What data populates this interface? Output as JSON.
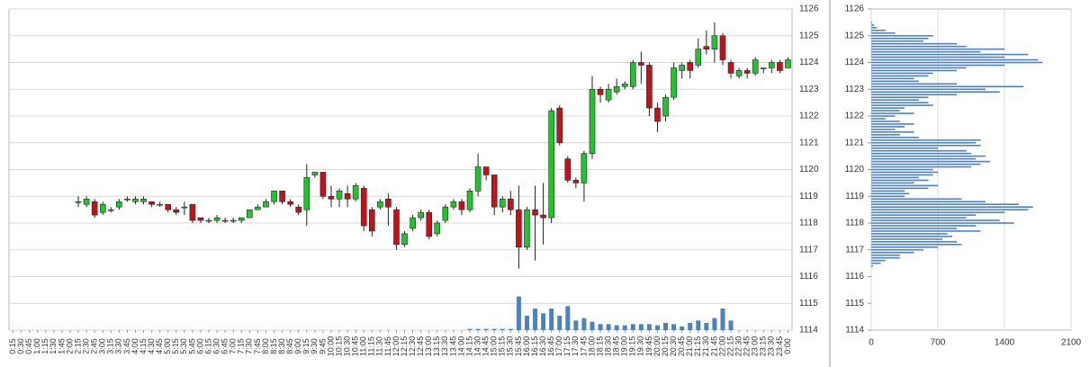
{
  "chart_data": [
    {
      "type": "candlestick",
      "categories": [
        "0:15",
        "0:30",
        "0:45",
        "1:00",
        "1:15",
        "1:30",
        "1:45",
        "2:00",
        "2:15",
        "2:30",
        "2:45",
        "3:00",
        "3:15",
        "3:30",
        "3:45",
        "4:00",
        "4:15",
        "4:30",
        "4:45",
        "5:00",
        "5:15",
        "5:30",
        "5:45",
        "6:00",
        "6:15",
        "6:30",
        "6:45",
        "7:00",
        "7:15",
        "7:30",
        "7:45",
        "8:00",
        "8:15",
        "8:30",
        "8:45",
        "9:00",
        "9:15",
        "9:30",
        "9:45",
        "10:00",
        "10:15",
        "10:30",
        "10:45",
        "11:00",
        "11:15",
        "11:30",
        "11:45",
        "12:00",
        "12:15",
        "12:30",
        "12:45",
        "13:00",
        "13:15",
        "13:30",
        "13:45",
        "14:00",
        "14:15",
        "14:30",
        "14:45",
        "15:00",
        "15:15",
        "15:30",
        "15:45",
        "16:00",
        "16:15",
        "16:30",
        "16:45",
        "17:00",
        "17:15",
        "17:30",
        "17:45",
        "18:00",
        "18:15",
        "18:30",
        "18:45",
        "19:00",
        "19:15",
        "19:30",
        "19:45",
        "20:00",
        "20:15",
        "20:30",
        "20:45",
        "21:00",
        "21:15",
        "21:30",
        "21:45",
        "22:00",
        "22:15",
        "22:30",
        "22:45",
        "23:00",
        "23:15",
        "23:30",
        "23:45",
        "0:00"
      ],
      "open": [
        null,
        null,
        null,
        null,
        null,
        null,
        null,
        null,
        1118.8,
        1118.7,
        1118.8,
        1118.4,
        1118.5,
        1118.6,
        1118.9,
        1118.8,
        1118.8,
        1118.8,
        1118.7,
        1118.7,
        1118.5,
        1118.6,
        1118.7,
        1118.2,
        1118.1,
        1118.1,
        1118.1,
        1118.1,
        1118.1,
        1118.2,
        1118.5,
        1118.6,
        1118.8,
        1119.2,
        1118.8,
        1118.6,
        1118.5,
        1119.8,
        1119.9,
        1119.0,
        1118.9,
        1119.1,
        1118.9,
        1119.3,
        1118.5,
        1118.6,
        1118.9,
        1118.5,
        1117.2,
        1117.8,
        1118.2,
        1118.4,
        1117.6,
        1118.1,
        1118.6,
        1118.8,
        1118.5,
        1119.2,
        1120.1,
        1119.8,
        1118.6,
        1118.9,
        1118.5,
        1117.1,
        1118.5,
        1118.3,
        1118.2,
        1122.3,
        1120.4,
        1119.6,
        1119.5,
        1120.6,
        1123.0,
        1122.6,
        1122.9,
        1123.1,
        1123.1,
        1124.0,
        1123.9,
        1122.3,
        1122.0,
        1122.7,
        1123.7,
        1124.0,
        1123.9,
        1124.6,
        1124.5,
        1125.0,
        1124.0,
        1123.5,
        1123.7,
        1123.6,
        1123.8,
        1123.8,
        1124.0,
        1123.8
      ],
      "high": [
        null,
        null,
        null,
        null,
        null,
        null,
        null,
        null,
        1119.0,
        1119.0,
        1118.9,
        1118.8,
        1118.6,
        1118.9,
        1119.0,
        1119.0,
        1119.0,
        1118.8,
        1118.8,
        1118.7,
        1118.6,
        1118.8,
        1118.7,
        1118.2,
        1118.2,
        1118.3,
        1118.2,
        1118.2,
        1118.2,
        1118.5,
        1118.7,
        1118.9,
        1119.2,
        1119.2,
        1118.9,
        1118.7,
        1120.2,
        1119.9,
        1119.9,
        1119.4,
        1119.3,
        1119.4,
        1119.5,
        1119.4,
        1118.6,
        1118.9,
        1119.1,
        1118.6,
        1117.7,
        1118.3,
        1118.5,
        1118.5,
        1118.1,
        1118.7,
        1118.9,
        1118.9,
        1119.3,
        1120.6,
        1120.1,
        1119.8,
        1119.0,
        1119.2,
        1119.4,
        1118.6,
        1119.4,
        1119.5,
        1122.3,
        1122.4,
        1120.5,
        1119.7,
        1120.7,
        1123.5,
        1123.1,
        1123.2,
        1123.4,
        1123.3,
        1124.1,
        1124.4,
        1124.0,
        1122.5,
        1122.8,
        1124.0,
        1124.0,
        1124.1,
        1124.9,
        1125.2,
        1125.5,
        1125.1,
        1124.1,
        1123.8,
        1123.8,
        1124.2,
        1123.8,
        1124.1,
        1124.1,
        1124.2
      ],
      "low": [
        null,
        null,
        null,
        null,
        null,
        null,
        null,
        null,
        1118.6,
        1118.6,
        1118.2,
        1118.3,
        1118.4,
        1118.5,
        1118.8,
        1118.7,
        1118.7,
        1118.6,
        1118.6,
        1118.4,
        1118.3,
        1118.3,
        1118.0,
        1118.0,
        1118.0,
        1118.0,
        1118.0,
        1118.0,
        1118.0,
        1118.2,
        1118.5,
        1118.6,
        1118.7,
        1118.7,
        1118.6,
        1118.3,
        1117.9,
        1119.7,
        1118.9,
        1118.6,
        1118.6,
        1118.6,
        1118.8,
        1117.7,
        1117.5,
        1118.5,
        1117.9,
        1117.0,
        1117.1,
        1117.7,
        1118.1,
        1117.4,
        1117.5,
        1118.0,
        1118.5,
        1118.3,
        1118.4,
        1119.0,
        1119.6,
        1118.3,
        1118.4,
        1118.3,
        1116.3,
        1117.0,
        1116.6,
        1117.2,
        1118.0,
        1120.9,
        1119.5,
        1119.3,
        1118.8,
        1120.4,
        1122.5,
        1122.5,
        1122.8,
        1123.0,
        1123.0,
        1123.2,
        1122.0,
        1121.4,
        1121.8,
        1122.6,
        1123.4,
        1123.4,
        1123.8,
        1124.3,
        1124.0,
        1123.9,
        1123.4,
        1123.4,
        1123.4,
        1123.5,
        1123.6,
        1123.6,
        1123.6,
        1123.8
      ],
      "close": [
        null,
        null,
        null,
        null,
        null,
        null,
        null,
        null,
        1118.8,
        1118.9,
        1118.3,
        1118.7,
        1118.5,
        1118.8,
        1118.9,
        1118.9,
        1118.9,
        1118.7,
        1118.7,
        1118.5,
        1118.4,
        1118.6,
        1118.1,
        1118.1,
        1118.1,
        1118.2,
        1118.1,
        1118.1,
        1118.2,
        1118.5,
        1118.6,
        1118.8,
        1119.2,
        1118.8,
        1118.7,
        1118.4,
        1119.7,
        1119.9,
        1119.0,
        1118.9,
        1119.2,
        1118.9,
        1119.4,
        1117.9,
        1117.7,
        1118.8,
        1118.6,
        1117.2,
        1117.6,
        1118.2,
        1118.4,
        1117.5,
        1118.0,
        1118.6,
        1118.8,
        1118.5,
        1119.2,
        1120.1,
        1119.8,
        1118.6,
        1118.9,
        1118.5,
        1117.1,
        1118.5,
        1118.3,
        1118.2,
        1122.2,
        1121.0,
        1119.6,
        1119.5,
        1120.6,
        1123.0,
        1122.8,
        1123.0,
        1123.1,
        1123.2,
        1124.0,
        1123.9,
        1122.3,
        1121.8,
        1122.7,
        1123.8,
        1123.9,
        1123.7,
        1124.5,
        1124.5,
        1125.0,
        1124.1,
        1123.6,
        1123.7,
        1123.6,
        1124.1,
        1123.8,
        1124.0,
        1123.7,
        1124.1
      ],
      "volume": [
        null,
        null,
        null,
        null,
        null,
        null,
        null,
        null,
        null,
        null,
        null,
        null,
        null,
        null,
        null,
        null,
        null,
        null,
        null,
        null,
        null,
        null,
        null,
        null,
        null,
        null,
        null,
        null,
        null,
        null,
        null,
        null,
        null,
        null,
        null,
        null,
        null,
        null,
        null,
        null,
        null,
        null,
        null,
        null,
        null,
        null,
        null,
        null,
        null,
        null,
        null,
        null,
        null,
        null,
        null,
        null,
        1,
        1,
        1,
        1,
        1,
        1,
        28,
        12,
        18,
        14,
        18,
        12,
        20,
        8,
        10,
        7,
        5,
        5,
        4,
        4,
        5,
        5,
        5,
        4,
        6,
        5,
        3,
        6,
        8,
        6,
        10,
        18,
        8,
        null,
        null,
        null,
        null,
        null,
        null,
        null
      ],
      "up_color": "#22c32e",
      "down_color": "#c0141c",
      "volume_color": "#4f81bd",
      "ylim": [
        1114,
        1126
      ],
      "yticks": [
        1114,
        1115,
        1116,
        1117,
        1118,
        1119,
        1120,
        1121,
        1122,
        1123,
        1124,
        1125,
        1126
      ],
      "grid": true
    },
    {
      "type": "barh",
      "levels": [
        1125.5,
        1125.4,
        1125.3,
        1125.2,
        1125.1,
        1125.0,
        1124.9,
        1124.8,
        1124.7,
        1124.6,
        1124.5,
        1124.4,
        1124.3,
        1124.2,
        1124.1,
        1124.0,
        1123.9,
        1123.8,
        1123.7,
        1123.6,
        1123.5,
        1123.4,
        1123.3,
        1123.2,
        1123.1,
        1123.0,
        1122.9,
        1122.8,
        1122.7,
        1122.6,
        1122.5,
        1122.4,
        1122.3,
        1122.2,
        1122.1,
        1122.0,
        1121.9,
        1121.8,
        1121.7,
        1121.6,
        1121.5,
        1121.4,
        1121.3,
        1121.2,
        1121.1,
        1121.0,
        1120.9,
        1120.8,
        1120.7,
        1120.6,
        1120.5,
        1120.4,
        1120.3,
        1120.2,
        1120.1,
        1120.0,
        1119.9,
        1119.8,
        1119.7,
        1119.6,
        1119.5,
        1119.4,
        1119.3,
        1119.2,
        1119.1,
        1119.0,
        1118.9,
        1118.8,
        1118.7,
        1118.6,
        1118.5,
        1118.4,
        1118.3,
        1118.2,
        1118.1,
        1118.0,
        1117.9,
        1117.8,
        1117.7,
        1117.6,
        1117.5,
        1117.4,
        1117.3,
        1117.2,
        1117.1,
        1117.0,
        1116.9,
        1116.8,
        1116.7,
        1116.6,
        1116.5,
        1116.4
      ],
      "values": [
        10,
        30,
        60,
        150,
        250,
        650,
        600,
        550,
        900,
        1000,
        1400,
        1150,
        1650,
        1400,
        1750,
        1800,
        1400,
        1000,
        900,
        650,
        600,
        450,
        500,
        900,
        1600,
        1200,
        1350,
        900,
        600,
        500,
        600,
        650,
        350,
        300,
        450,
        250,
        150,
        300,
        450,
        350,
        250,
        450,
        300,
        500,
        1150,
        1100,
        1150,
        700,
        1000,
        1050,
        1200,
        1100,
        1250,
        1150,
        1050,
        650,
        700,
        650,
        500,
        600,
        450,
        700,
        600,
        350,
        400,
        350,
        950,
        1200,
        1550,
        1700,
        1650,
        1400,
        1100,
        1000,
        1350,
        1500,
        1100,
        900,
        1150,
        800,
        850,
        750,
        900,
        950,
        700,
        550,
        450,
        300,
        300,
        150,
        100,
        20
      ],
      "color": "#4f81bd",
      "xlim": [
        0,
        2100
      ],
      "xticks": [
        0,
        700,
        1400,
        2100
      ],
      "ylim": [
        1114,
        1126
      ],
      "yticks": [
        1114,
        1115,
        1116,
        1117,
        1118,
        1119,
        1120,
        1121,
        1122,
        1123,
        1124,
        1125,
        1126
      ],
      "grid": true
    }
  ]
}
